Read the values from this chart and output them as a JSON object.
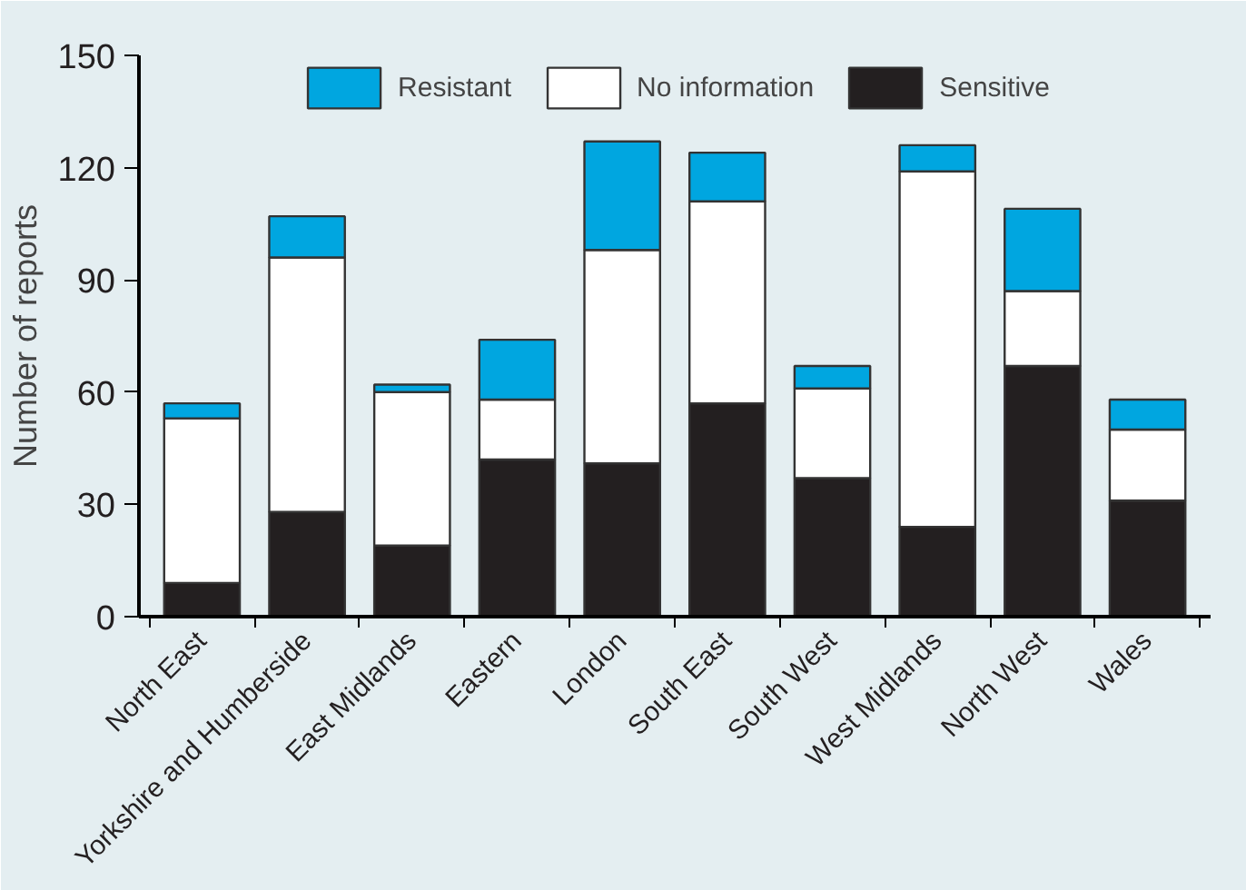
{
  "chart_data": {
    "type": "bar",
    "stacked": true,
    "ylabel": "Number of reports",
    "categories": [
      "North East",
      "Yorkshire and Humberside",
      "East Midlands",
      "Eastern",
      "London",
      "South East",
      "South West",
      "West Midlands",
      "North West",
      "Wales"
    ],
    "series": [
      {
        "name": "Sensitive",
        "color": "#231f20",
        "values": [
          9,
          28,
          19,
          42,
          41,
          57,
          37,
          24,
          67,
          31
        ]
      },
      {
        "name": "No information",
        "color": "#ffffff",
        "values": [
          44,
          68,
          41,
          16,
          57,
          54,
          24,
          95,
          20,
          19
        ]
      },
      {
        "name": "Resistant",
        "color": "#00a6e0",
        "values": [
          4,
          11,
          2,
          16,
          29,
          13,
          6,
          7,
          22,
          8
        ]
      }
    ],
    "ylim": [
      0,
      150
    ],
    "yticks": [
      0,
      30,
      60,
      90,
      120,
      150
    ],
    "grid": false,
    "legend": "top"
  }
}
